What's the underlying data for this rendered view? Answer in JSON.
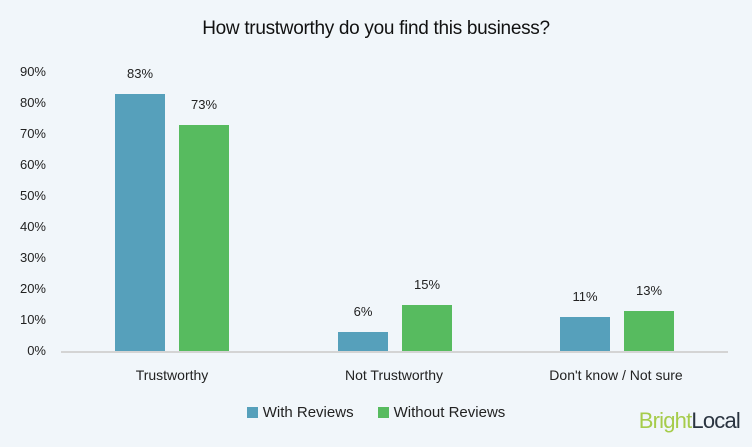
{
  "chart_data": {
    "type": "bar",
    "title": "How trustworthy do you find this business?",
    "categories": [
      "Trustworthy",
      "Not Trustworthy",
      "Don't know / Not sure"
    ],
    "series": [
      {
        "name": "With Reviews",
        "color": "#56a0bb",
        "values": [
          83,
          6,
          11
        ]
      },
      {
        "name": "Without Reviews",
        "color": "#57bb5f",
        "values": [
          73,
          15,
          13
        ]
      }
    ],
    "xlabel": "",
    "ylabel": "",
    "ylim": [
      0,
      90
    ],
    "yticks": [
      "0%",
      "10%",
      "20%",
      "30%",
      "40%",
      "50%",
      "60%",
      "70%",
      "80%",
      "90%"
    ],
    "value_format": "percent",
    "grid": false,
    "legend_position": "bottom"
  },
  "labels": {
    "values": [
      [
        "83%",
        "6%",
        "11%"
      ],
      [
        "73%",
        "15%",
        "13%"
      ]
    ]
  },
  "brand": {
    "part1": "Bright",
    "part2": "Local"
  }
}
